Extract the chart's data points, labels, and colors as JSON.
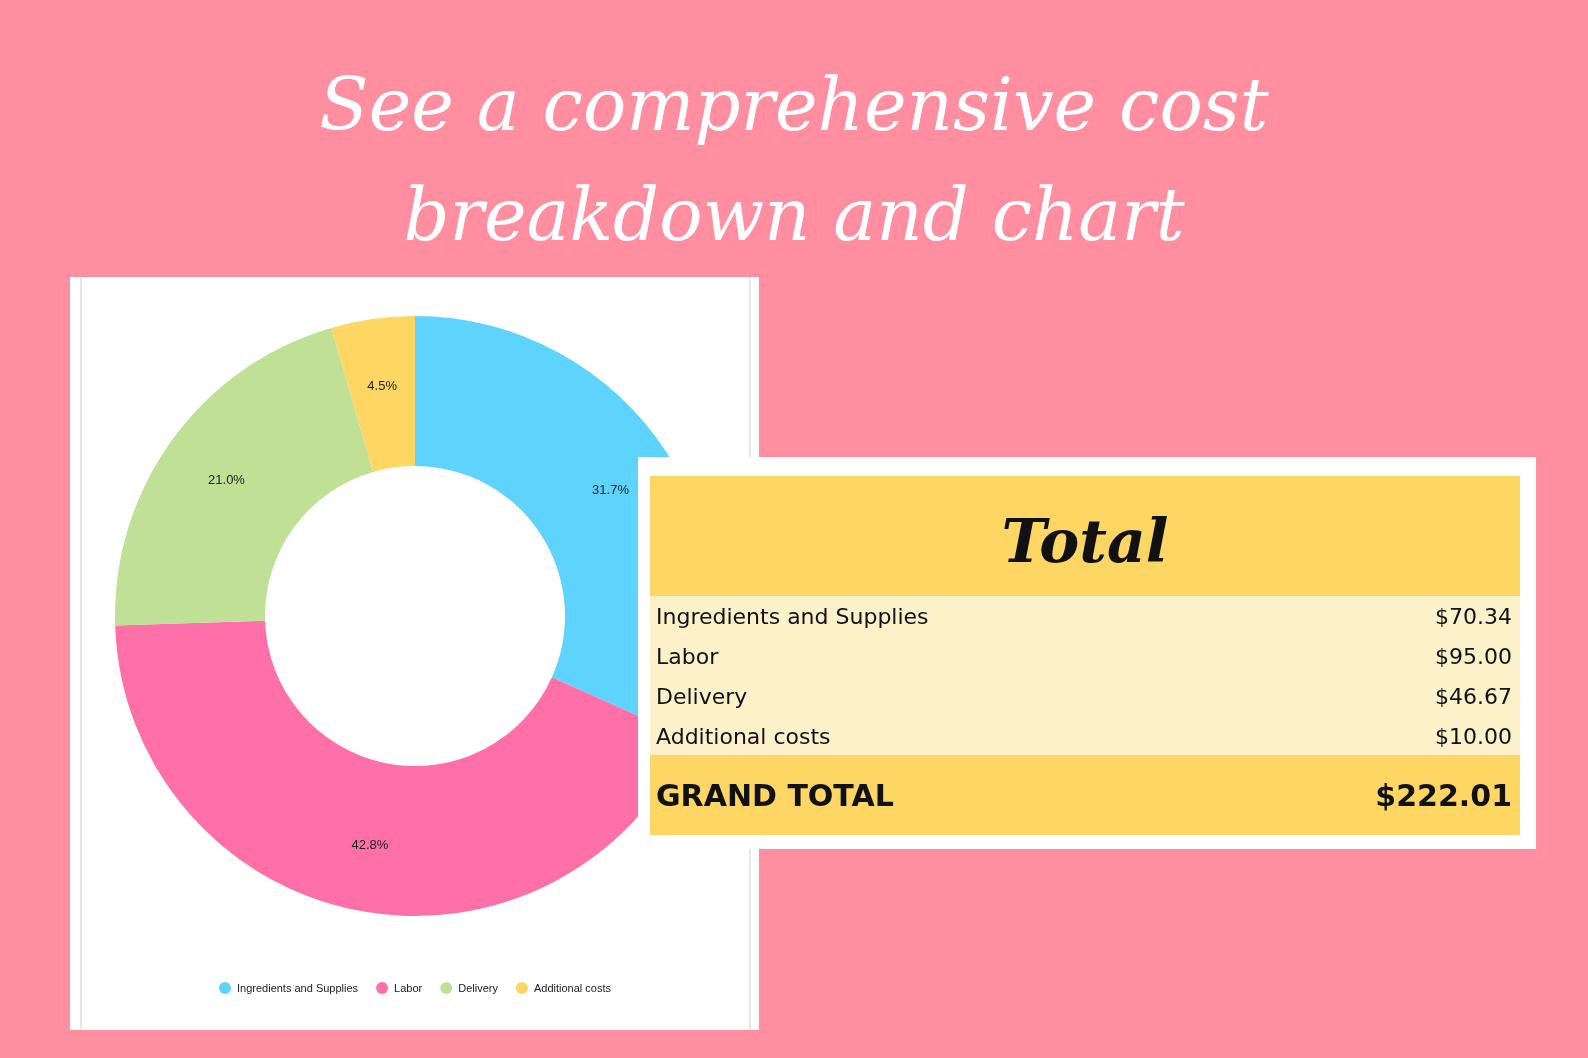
{
  "chart_data": [
    {
      "type": "donut",
      "title": "See a comprehensive cost breakdown and chart",
      "categories": [
        "Ingredients and Supplies",
        "Labor",
        "Delivery",
        "Additional costs"
      ],
      "values": [
        31.7,
        42.8,
        21.0,
        4.5
      ],
      "value_labels": [
        "31.7%",
        "42.8%",
        "21.0%",
        "4.5%"
      ],
      "colors": [
        "#5dd3fd",
        "#ff6fa8",
        "#bfe095",
        "#fdd663"
      ],
      "legend": "bottom"
    },
    {
      "type": "other",
      "title": "Total",
      "categories": [
        "Ingredients and Supplies",
        "Labor",
        "Delivery",
        "Additional costs",
        "GRAND TOTAL"
      ],
      "values": [
        70.34,
        95.0,
        46.67,
        10.0,
        222.01
      ],
      "value_labels": [
        "$70.34",
        "$95.00",
        "$46.67",
        "$10.00",
        "$222.01"
      ]
    }
  ]
}
